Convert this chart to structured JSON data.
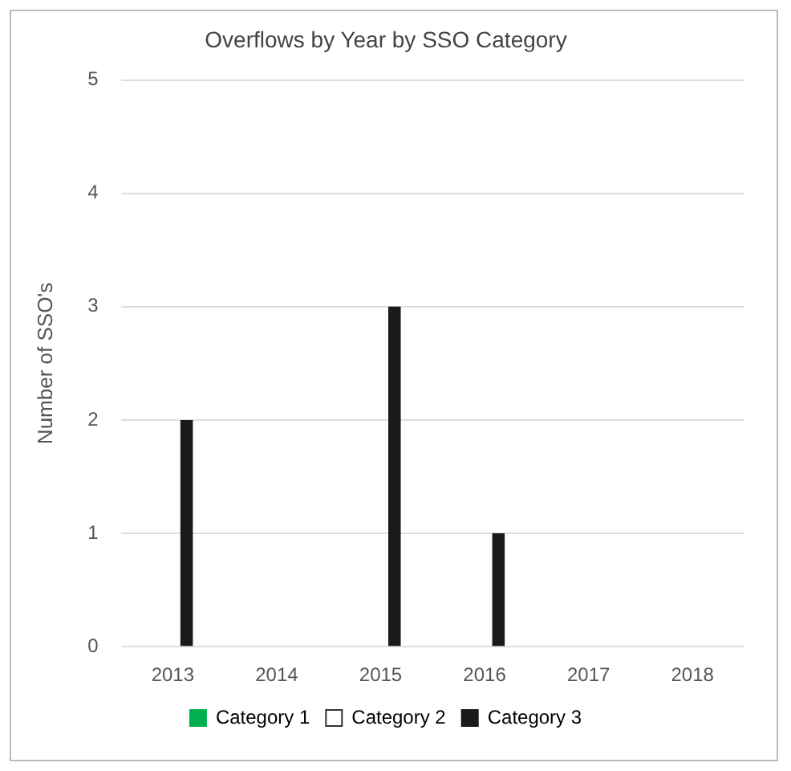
{
  "chart_data": {
    "type": "bar",
    "title": "Overflows by Year by SSO Category",
    "ylabel": "Number of SSO's",
    "categories": [
      "2013",
      "2014",
      "2015",
      "2016",
      "2017",
      "2018"
    ],
    "series": [
      {
        "name": "Category 1",
        "color": "#00b050",
        "values": [
          0,
          0,
          0,
          0,
          0,
          0
        ]
      },
      {
        "name": "Category 2",
        "color": "#ffffff",
        "values": [
          0,
          0,
          0,
          0,
          0,
          0
        ]
      },
      {
        "name": "Category 3",
        "color": "#1a1a1a",
        "values": [
          2,
          0,
          3,
          1,
          0,
          0
        ]
      }
    ],
    "ylim": [
      0,
      5
    ],
    "yticks": [
      0,
      1,
      2,
      3,
      4,
      5
    ],
    "grid": "y",
    "legend": "bottom"
  }
}
